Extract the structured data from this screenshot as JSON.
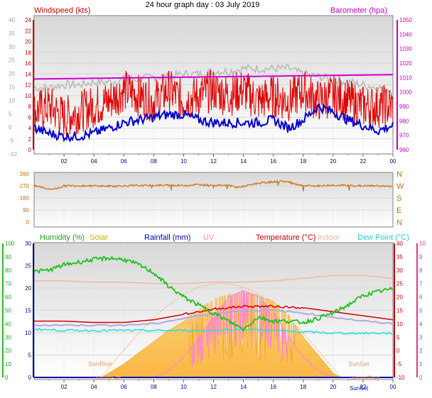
{
  "title": "24 hour graph day : 03 July 2019",
  "colors": {
    "wind_speed": "#e00000",
    "wind_avg": "#0000d0",
    "wind_gust_avg": "#b8b8b8",
    "barometer": "#d000d0",
    "direction": "#d07010",
    "humidity": "#20c020",
    "solar": "#f6c040",
    "rain": "#0000a0",
    "uv": "#ff88cc",
    "temperature": "#d00000",
    "indoor": "#f0b8a0",
    "dewpoint": "#20e0e0",
    "windchill": "#b0a8e8",
    "axis_green": "#00a000",
    "axis_pink": "#d04080",
    "axis_purple": "#c000c0",
    "tick_grey": "#c0c0c0"
  },
  "panels": {
    "wind": {
      "left_label": "Windspeed (kts)",
      "right_label": "Barometer (hpa)",
      "left_ticks": [
        "0",
        "2",
        "4",
        "6",
        "8",
        "10",
        "12",
        "14",
        "16",
        "18",
        "20",
        "22",
        "24"
      ],
      "right_ticks": [
        "960",
        "970",
        "980",
        "990",
        "1000",
        "1010",
        "1020",
        "1030",
        "1040",
        "1050"
      ],
      "outer_left_ticks": [
        "-10",
        "-5",
        "0",
        "5",
        "10",
        "15",
        "20",
        "25",
        "30",
        "35",
        "40"
      ],
      "x_ticks": [
        "02",
        "04",
        "06",
        "08",
        "10",
        "12",
        "14",
        "16",
        "18",
        "20",
        "22",
        "00"
      ]
    },
    "direction": {
      "left_ticks": [
        "0",
        "90",
        "180",
        "270",
        "360"
      ],
      "right_ticks": [
        "N",
        "W",
        "S",
        "E",
        "N"
      ],
      "x_ticks": []
    },
    "climate": {
      "legend": [
        {
          "label": "Humidity (%)",
          "color": "#20c020"
        },
        {
          "label": "Solar",
          "color": "#d8c000"
        },
        {
          "label": "Rainfall (mm)",
          "color": "#0000a0"
        },
        {
          "label": "UV",
          "color": "#ff88cc"
        },
        {
          "label": "Temperature (°C)",
          "color": "#c00000"
        },
        {
          "label": "Indoor",
          "color": "#f0b8a0"
        },
        {
          "label": "Dew Point (°C)",
          "color": "#20e0e0"
        }
      ],
      "outer_left_ticks": [
        "0",
        "10",
        "20",
        "30",
        "40",
        "50",
        "60",
        "70",
        "80",
        "90",
        "100"
      ],
      "left_ticks": [
        "0",
        "5",
        "10",
        "15",
        "20",
        "25",
        "30"
      ],
      "right_ticks": [
        "-10",
        "-5",
        "0",
        "5",
        "10",
        "15",
        "20",
        "25",
        "30",
        "35",
        "40"
      ],
      "outer_right_ticks": [
        "0",
        "1",
        "2",
        "3",
        "4",
        "5",
        "6",
        "7",
        "8",
        "9",
        "10"
      ],
      "x_ticks": [
        "02",
        "04",
        "06",
        "08",
        "10",
        "12",
        "14",
        "16",
        "18",
        "20",
        "22",
        "00"
      ],
      "annotations": {
        "sunrise": "SunRise",
        "sunset": "SunSet",
        "moonset": "MoonSet",
        "moonrise": "MoonRise",
        "bottom_sunset": "SunSet"
      }
    }
  },
  "chart_data": [
    {
      "type": "line",
      "title": "24 hour graph day : 03 July 2019",
      "x_unit": "hour",
      "xlim": [
        0,
        24
      ],
      "ylim_left": [
        0,
        25
      ],
      "ylim_right": [
        960,
        1050
      ],
      "series": [
        {
          "name": "Barometer (hpa)",
          "axis": "right",
          "x": [
            0,
            4,
            8,
            12,
            16,
            20,
            24
          ],
          "values": [
            1009,
            1009.5,
            1010,
            1010.5,
            1011,
            1011.5,
            1012
          ]
        },
        {
          "name": "Windspeed (kts)",
          "x": [
            0,
            1,
            2,
            3,
            4,
            5,
            6,
            7,
            8,
            9,
            10,
            11,
            12,
            13,
            14,
            15,
            16,
            17,
            18,
            19,
            20,
            21,
            22,
            23,
            24
          ],
          "values": [
            7,
            8,
            6,
            7,
            8,
            9,
            11,
            10,
            9,
            11,
            9,
            10,
            11,
            10,
            11,
            9,
            10,
            9,
            11,
            9,
            10,
            9,
            8,
            8,
            8
          ]
        },
        {
          "values": [
            4,
            3,
            2.5,
            2.5,
            3,
            4,
            5,
            5.5,
            6,
            6.5,
            6.5,
            5.5,
            5,
            5,
            5,
            5,
            5.5,
            4,
            5.5,
            8,
            7,
            5.5,
            4.5,
            3.5,
            4.5
          ],
          "x": [
            0,
            1,
            2,
            3,
            4,
            5,
            6,
            7,
            8,
            9,
            10,
            11,
            12,
            13,
            14,
            15,
            16,
            17,
            18,
            19,
            20,
            21,
            22,
            23,
            24
          ]
        },
        {
          "values": [
            11.5,
            11.5,
            12,
            12,
            12.5,
            12.5,
            13,
            13,
            13.5,
            13.5,
            14,
            14,
            14.5,
            14.5,
            15,
            15,
            15,
            15,
            14,
            13.5,
            13,
            12.5,
            12,
            11.5,
            11
          ],
          "x": [
            0,
            1,
            2,
            3,
            4,
            5,
            6,
            7,
            8,
            9,
            10,
            11,
            12,
            13,
            14,
            15,
            16,
            17,
            18,
            19,
            20,
            21,
            22,
            23,
            24
          ]
        }
      ]
    },
    {
      "type": "line",
      "ylim": [
        0,
        360
      ],
      "series": [
        {
          "x": [
            0,
            0.5,
            1,
            1.5,
            2,
            3,
            4,
            5,
            6,
            7,
            8,
            9,
            10,
            11,
            12,
            13,
            13.5,
            14,
            14.5,
            15,
            16,
            16.5,
            17,
            17.5,
            18,
            19,
            20,
            21,
            22,
            23,
            24
          ],
          "values": [
            270,
            262,
            245,
            250,
            270,
            272,
            270,
            268,
            270,
            272,
            274,
            275,
            273,
            280,
            275,
            275,
            260,
            265,
            280,
            290,
            300,
            305,
            300,
            280,
            270,
            270,
            275,
            272,
            270,
            270,
            265
          ]
        }
      ]
    },
    {
      "type": "area",
      "xlim": [
        0,
        24
      ],
      "series": [
        {
          "name": "Humidity (%)",
          "axis": "outer_left",
          "x": [
            0,
            1,
            2,
            3,
            4,
            5,
            6,
            7,
            8,
            9,
            10,
            11,
            12,
            13,
            14,
            15,
            16,
            17,
            18,
            19,
            20,
            21,
            22,
            23,
            24
          ],
          "values": [
            79,
            80,
            84,
            86,
            88,
            89,
            88,
            84,
            78,
            68,
            60,
            54,
            48,
            42,
            36,
            45,
            42,
            42,
            41,
            44,
            48,
            54,
            61,
            64,
            66
          ]
        },
        {
          "name": "Temperature (°C)",
          "axis": "right",
          "x": [
            0,
            2,
            4,
            6,
            8,
            10,
            12,
            14,
            16,
            18,
            20,
            22,
            24
          ],
          "values": [
            11,
            11,
            10.5,
            10.5,
            11.5,
            13.5,
            15.5,
            16.5,
            16.5,
            16,
            14.5,
            13,
            11.5
          ]
        },
        {
          "name": "Dew Point (°C)",
          "axis": "right",
          "x": [
            0,
            2,
            4,
            6,
            8,
            10,
            12,
            14,
            16,
            18,
            20,
            22,
            24
          ],
          "values": [
            8,
            7.5,
            7.5,
            7.5,
            7.5,
            7.5,
            7.5,
            8,
            7.5,
            7,
            6.5,
            6.5,
            6.5
          ]
        },
        {
          "name": "Indoor",
          "axis": "right",
          "x": [
            0,
            2,
            4,
            6,
            8,
            10,
            12,
            14,
            16,
            18,
            20,
            22,
            24
          ],
          "values": [
            26,
            26,
            25.5,
            25.5,
            25,
            25,
            25.5,
            25.5,
            26,
            27,
            28,
            28,
            27
          ]
        },
        {
          "x": [
            0,
            2,
            4,
            6,
            8,
            10,
            12,
            14,
            16,
            18,
            20,
            22,
            24
          ],
          "values": [
            9.5,
            9.5,
            9.5,
            9.5,
            10,
            12,
            14,
            15,
            15,
            14,
            12.5,
            11,
            10
          ]
        },
        {
          "name": "Solar",
          "axis": "left",
          "x": [
            4.5,
            5,
            6,
            7,
            8,
            9,
            10,
            10.5,
            11,
            12,
            13,
            14,
            15,
            16,
            17,
            18,
            19,
            20,
            20.5
          ],
          "values": [
            0,
            1,
            3,
            5.5,
            8,
            10.5,
            12.5,
            14,
            15,
            17.5,
            18.5,
            19,
            18.5,
            17,
            14,
            9,
            5,
            1,
            0
          ]
        },
        {
          "name": "UV",
          "axis": "outer_right",
          "x": [
            8,
            9,
            10,
            11,
            12,
            13,
            14,
            15,
            16,
            17,
            18,
            19,
            20
          ],
          "values": [
            0,
            0.5,
            1.5,
            3,
            4.5,
            6,
            6.5,
            6,
            5,
            3,
            1.5,
            0.5,
            0
          ]
        },
        {
          "name": "Rainfall (mm)",
          "axis": "left",
          "x": [
            0,
            24
          ],
          "values": [
            0,
            0
          ]
        }
      ]
    }
  ]
}
